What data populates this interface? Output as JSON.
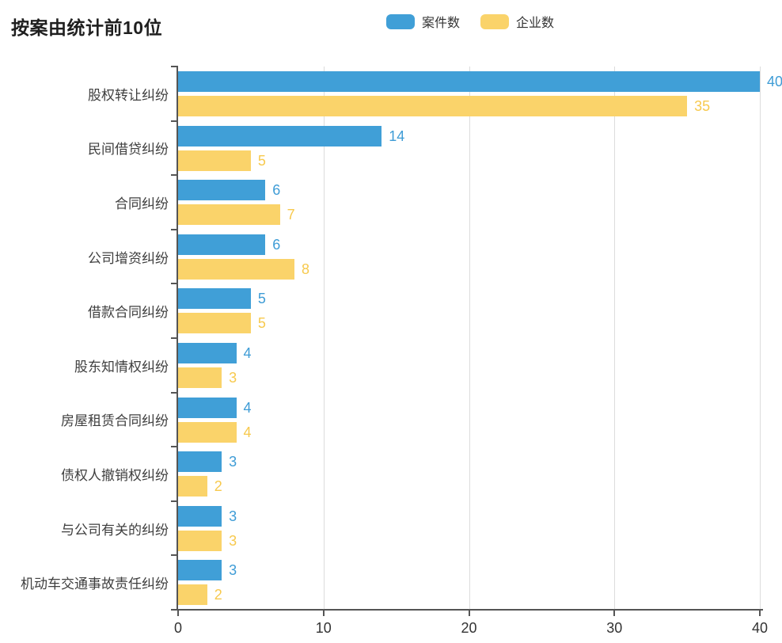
{
  "page": {
    "title": "按案由统计前10位"
  },
  "legend": {
    "items": [
      {
        "label": "案件数"
      },
      {
        "label": "企业数"
      }
    ]
  },
  "chart_data": {
    "type": "bar",
    "orientation": "horizontal",
    "title": "按案由统计前10位",
    "categories": [
      "股权转让纠纷",
      "民间借贷纠纷",
      "合同纠纷",
      "公司增资纠纷",
      "借款合同纠纷",
      "股东知情权纠纷",
      "房屋租赁合同纠纷",
      "债权人撤销权纠纷",
      "与公司有关的纠纷",
      "机动车交通事故责任纠纷"
    ],
    "series": [
      {
        "name": "案件数",
        "color": "#409FD7",
        "label_color": "#3E9CD6",
        "values": [
          40,
          14,
          6,
          6,
          5,
          4,
          4,
          3,
          3,
          3
        ]
      },
      {
        "name": "企业数",
        "color": "#FAD36A",
        "label_color": "#F7C94D",
        "values": [
          35,
          5,
          7,
          8,
          5,
          3,
          4,
          2,
          3,
          2
        ]
      }
    ],
    "xlabel": "",
    "ylabel": "",
    "xlim": [
      0,
      40
    ],
    "x_ticks": [
      0,
      10,
      20,
      30,
      40
    ],
    "grid": true,
    "legend_position": "top",
    "value_labels": true
  },
  "style": {
    "axis_color": "#555555",
    "grid_color": "#DCDCDC",
    "tick_label_color": "#333333",
    "category_label_color": "#3F3F3F",
    "title_color": "#1F1F1F"
  }
}
